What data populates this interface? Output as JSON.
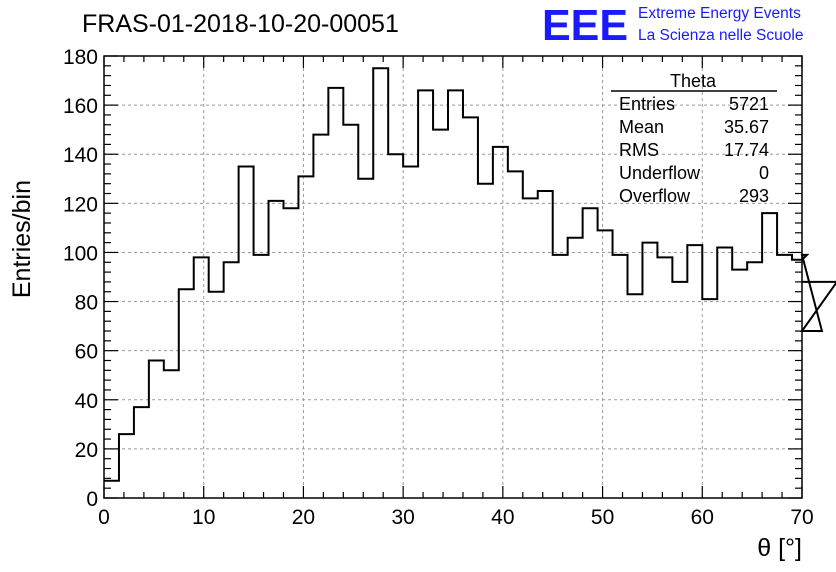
{
  "chart_data": {
    "type": "bar",
    "title": "FRAS-01-2018-10-20-00051",
    "xlabel": "θ [°]",
    "ylabel": "Entries/bin",
    "xlim": [
      0,
      70
    ],
    "ylim": [
      0,
      180
    ],
    "bin_width": 1.5,
    "x_ticks": [
      "0",
      "10",
      "20",
      "30",
      "40",
      "50",
      "60",
      "70"
    ],
    "y_ticks": [
      "0",
      "20",
      "40",
      "60",
      "80",
      "100",
      "120",
      "140",
      "160",
      "180"
    ],
    "grid": true,
    "values": [
      7,
      26,
      37,
      56,
      52,
      85,
      98,
      84,
      96,
      135,
      99,
      121,
      118,
      131,
      148,
      167,
      152,
      130,
      175,
      140,
      135,
      166,
      150,
      166,
      155,
      128,
      143,
      133,
      122,
      125,
      99,
      106,
      118,
      109,
      99,
      83,
      104,
      98,
      88,
      103,
      81,
      102,
      93,
      96,
      116,
      99,
      97,
      99,
      68,
      88
    ],
    "stats": {
      "name": "Theta",
      "rows": [
        {
          "label": "Entries",
          "value": "5721"
        },
        {
          "label": "Mean",
          "value": "35.67"
        },
        {
          "label": "RMS",
          "value": "17.74"
        },
        {
          "label": "Underflow",
          "value": "0"
        },
        {
          "label": "Overflow",
          "value": "293"
        }
      ]
    },
    "logo": {
      "mark": "EEE",
      "line1": "Extreme Energy Events",
      "line2": "La Scienza nelle Scuole",
      "color": "#1a1aff"
    }
  }
}
